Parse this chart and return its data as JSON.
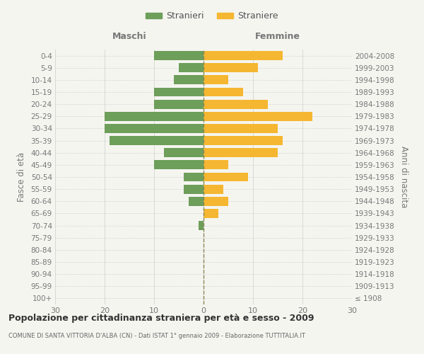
{
  "age_groups": [
    "100+",
    "95-99",
    "90-94",
    "85-89",
    "80-84",
    "75-79",
    "70-74",
    "65-69",
    "60-64",
    "55-59",
    "50-54",
    "45-49",
    "40-44",
    "35-39",
    "30-34",
    "25-29",
    "20-24",
    "15-19",
    "10-14",
    "5-9",
    "0-4"
  ],
  "birth_years": [
    "≤ 1908",
    "1909-1913",
    "1914-1918",
    "1919-1923",
    "1924-1928",
    "1929-1933",
    "1934-1938",
    "1939-1943",
    "1944-1948",
    "1949-1953",
    "1954-1958",
    "1959-1963",
    "1964-1968",
    "1969-1973",
    "1974-1978",
    "1979-1983",
    "1984-1988",
    "1989-1993",
    "1994-1998",
    "1999-2003",
    "2004-2008"
  ],
  "males": [
    0,
    0,
    0,
    0,
    0,
    0,
    1,
    0,
    3,
    4,
    4,
    10,
    8,
    19,
    20,
    20,
    10,
    10,
    6,
    5,
    10
  ],
  "females": [
    0,
    0,
    0,
    0,
    0,
    0,
    0,
    3,
    5,
    4,
    9,
    5,
    15,
    16,
    15,
    22,
    13,
    8,
    5,
    11,
    16
  ],
  "male_color": "#6d9e5a",
  "female_color": "#f5b731",
  "bg_color": "#f5f5f0",
  "grid_color": "#cccccc",
  "dashed_color": "#888855",
  "xlim": 30,
  "title": "Popolazione per cittadinanza straniera per età e sesso - 2009",
  "subtitle": "COMUNE DI SANTA VITTORIA D'ALBA (CN) - Dati ISTAT 1° gennaio 2009 - Elaborazione TUTTITALIA.IT",
  "xlabel_left": "Maschi",
  "xlabel_right": "Femmine",
  "ylabel_left": "Fasce di età",
  "ylabel_right": "Anni di nascita",
  "legend_male": "Stranieri",
  "legend_female": "Straniere"
}
